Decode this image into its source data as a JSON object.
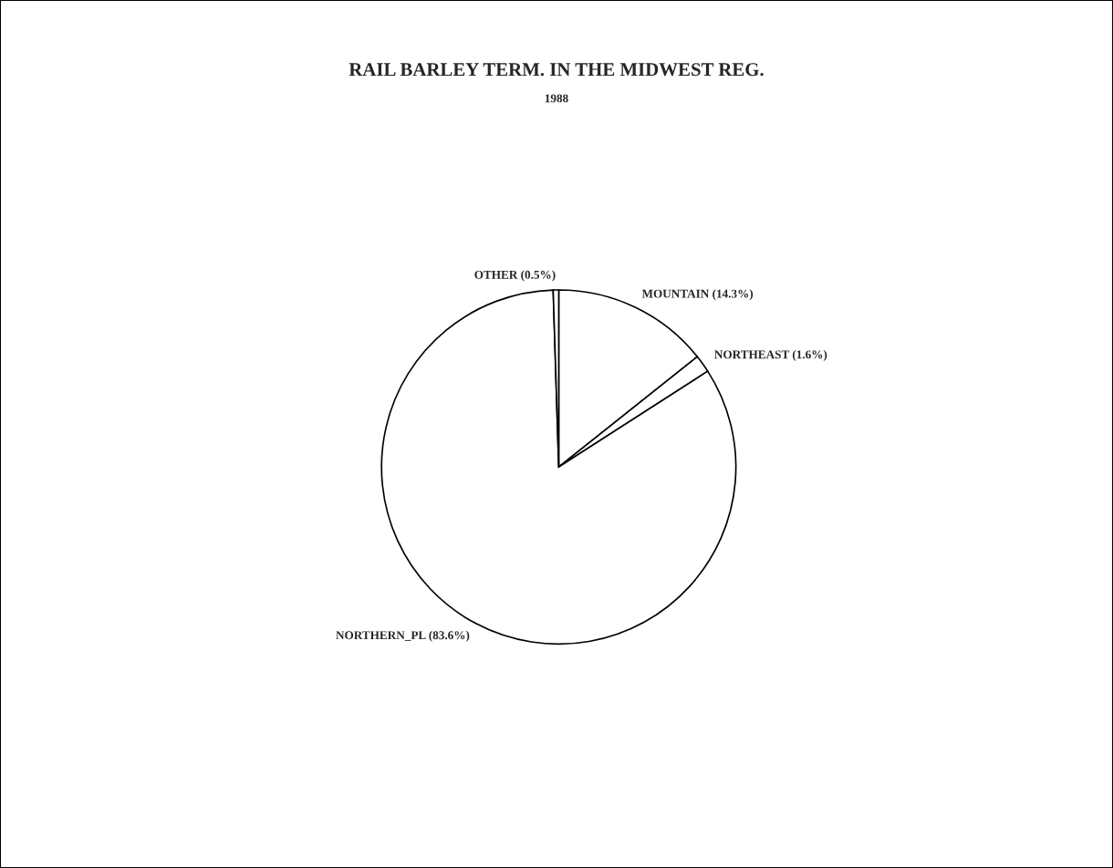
{
  "chart_data": {
    "type": "pie",
    "title": "RAIL BARLEY TERM. IN THE MIDWEST REG.",
    "subtitle": "1988",
    "categories": [
      "MOUNTAIN (14.3%)",
      "NORTHEAST (1.6%)",
      "NORTHERN_PL (83.6%)",
      "OTHER (0.5%)"
    ],
    "values": [
      14.3,
      1.6,
      83.6,
      0.5
    ],
    "colors": [
      "#ffffff",
      "#ffffff",
      "#ffffff",
      "#ffffff"
    ]
  }
}
